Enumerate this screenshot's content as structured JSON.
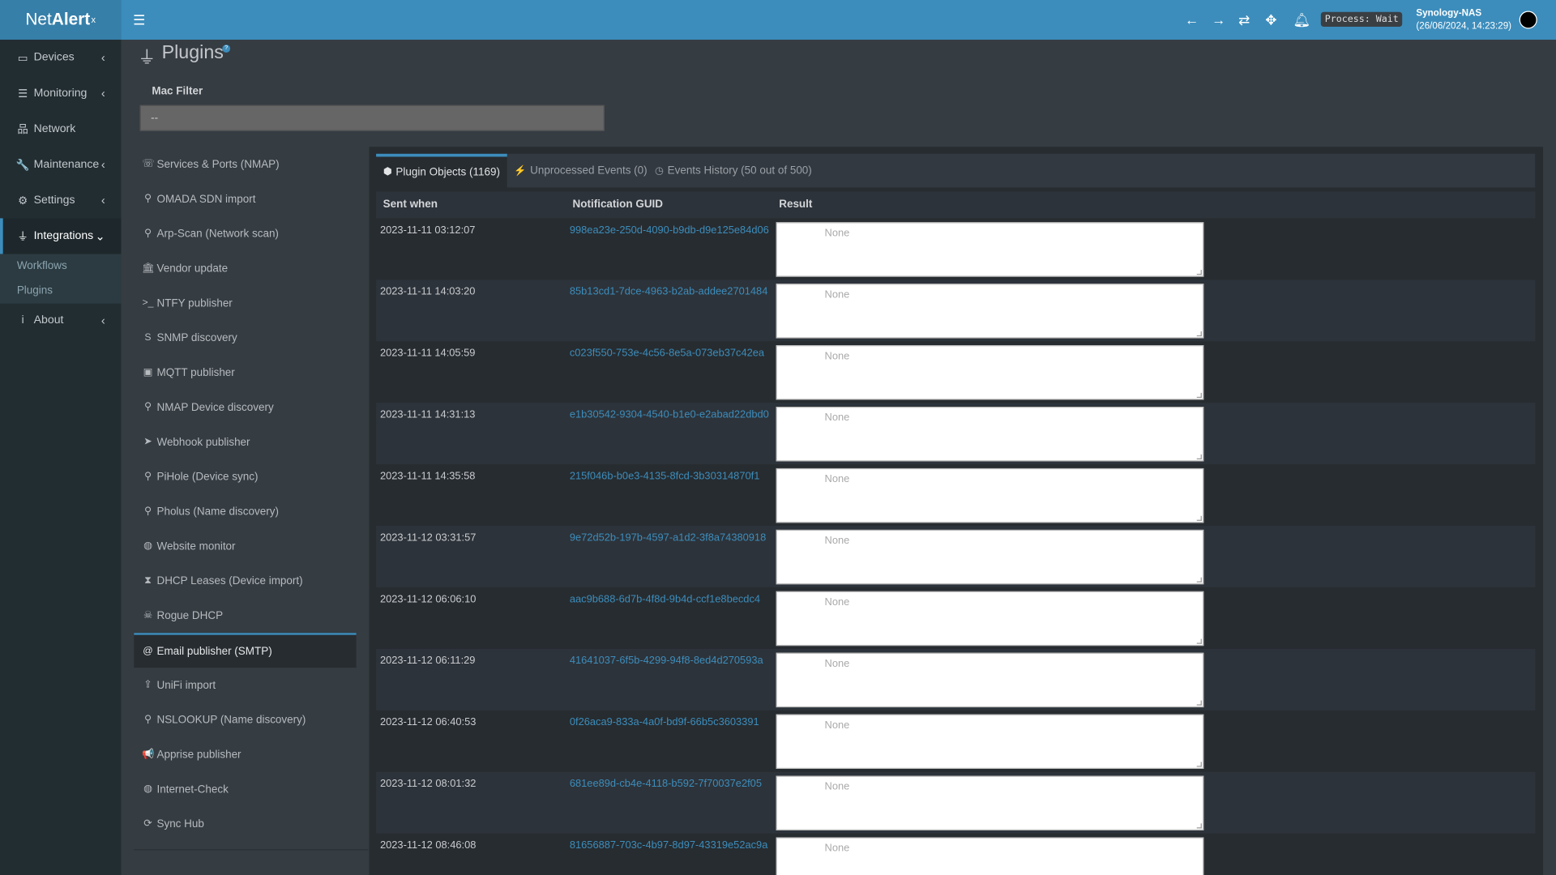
{
  "app": {
    "logo_main": "Net",
    "logo_bold": "Alert",
    "logo_sup": "x"
  },
  "header": {
    "process_status": "Process: Wait",
    "host_name": "Synology-NAS",
    "host_time": "(26/06/2024, 14:23:29)",
    "icons": [
      "menu-icon",
      "arrow-left-icon",
      "arrow-right-icon",
      "refresh-icon",
      "arrows-move-icon",
      "bell-icon",
      "avatar"
    ]
  },
  "sidebar": {
    "items": [
      {
        "label": "Devices",
        "icon": "laptop-icon",
        "glyph": "▭",
        "chevron": "‹"
      },
      {
        "label": "Monitoring",
        "icon": "chart-icon",
        "glyph": "☰",
        "chevron": "‹"
      },
      {
        "label": "Network",
        "icon": "sitemap-icon",
        "glyph": "品",
        "chevron": ""
      },
      {
        "label": "Maintenance",
        "icon": "wrench-icon",
        "glyph": "🔧",
        "chevron": "‹"
      },
      {
        "label": "Settings",
        "icon": "gear-icon",
        "glyph": "⚙",
        "chevron": "‹"
      },
      {
        "label": "Integrations",
        "icon": "plug-icon",
        "glyph": "⏚",
        "chevron": "⌄"
      },
      {
        "label": "About",
        "icon": "info-icon",
        "glyph": "i",
        "chevron": "‹"
      }
    ],
    "submenu": [
      "Workflows",
      "Plugins"
    ]
  },
  "page": {
    "title": "Plugins",
    "help": "?",
    "mac_filter_label": "Mac Filter",
    "mac_filter_value": "--"
  },
  "plugins": [
    {
      "label": "Services & Ports (NMAP)",
      "glyph": "☏",
      "icon": "satellite-dish-icon"
    },
    {
      "label": "OMADA SDN import",
      "glyph": "⚲",
      "icon": "search-icon"
    },
    {
      "label": "Arp-Scan (Network scan)",
      "glyph": "⚲",
      "icon": "search-icon"
    },
    {
      "label": "Vendor update",
      "glyph": "🏛",
      "icon": "bank-icon"
    },
    {
      "label": "NTFY publisher",
      "glyph": ">_",
      "icon": "terminal-icon"
    },
    {
      "label": "SNMP discovery",
      "glyph": "S",
      "icon": "s-icon"
    },
    {
      "label": "MQTT publisher",
      "glyph": "▣",
      "icon": "rss-square-icon"
    },
    {
      "label": "NMAP Device discovery",
      "glyph": "⚲",
      "icon": "search-icon"
    },
    {
      "label": "Webhook publisher",
      "glyph": "➤",
      "icon": "send-icon"
    },
    {
      "label": "PiHole (Device sync)",
      "glyph": "⚲",
      "icon": "search-icon"
    },
    {
      "label": "Pholus (Name discovery)",
      "glyph": "⚲",
      "icon": "search-icon"
    },
    {
      "label": "Website monitor",
      "glyph": "◍",
      "icon": "globe-icon"
    },
    {
      "label": "DHCP Leases (Device import)",
      "glyph": "⧗",
      "icon": "hourglass-icon"
    },
    {
      "label": "Rogue DHCP",
      "glyph": "☠",
      "icon": "skull-icon"
    },
    {
      "label": "Email publisher (SMTP)",
      "glyph": "@",
      "icon": "at-icon"
    },
    {
      "label": "UniFi import",
      "glyph": "⇪",
      "icon": "upload-icon"
    },
    {
      "label": "NSLOOKUP (Name discovery)",
      "glyph": "⚲",
      "icon": "search-icon"
    },
    {
      "label": "Apprise publisher",
      "glyph": "📢",
      "icon": "bullhorn-icon"
    },
    {
      "label": "Internet-Check",
      "glyph": "◍",
      "icon": "globe-icon"
    },
    {
      "label": "Sync Hub",
      "glyph": "⟳",
      "icon": "sync-icon"
    }
  ],
  "tabs": [
    {
      "label": "Plugin Objects (1169)",
      "glyph": "⬢",
      "icon": "cube-icon"
    },
    {
      "label": "Unprocessed Events (0)",
      "glyph": "⚡",
      "icon": "bolt-icon"
    },
    {
      "label": "Events History (50 out of 500)",
      "glyph": "◷",
      "icon": "clock-icon"
    }
  ],
  "table": {
    "columns": [
      "Sent when",
      "Notification GUID",
      "Result"
    ],
    "rows": [
      {
        "sent": "2023-11-11 03:12:07",
        "guid": "998ea23e-250d-4090-b9db-d9e125e84d06",
        "result": "None"
      },
      {
        "sent": "2023-11-11 14:03:20",
        "guid": "85b13cd1-7dce-4963-b2ab-addee2701484",
        "result": "None"
      },
      {
        "sent": "2023-11-11 14:05:59",
        "guid": "c023f550-753e-4c56-8e5a-073eb37c42ea",
        "result": "None"
      },
      {
        "sent": "2023-11-11 14:31:13",
        "guid": "e1b30542-9304-4540-b1e0-e2abad22dbd0",
        "result": "None"
      },
      {
        "sent": "2023-11-11 14:35:58",
        "guid": "215f046b-b0e3-4135-8fcd-3b30314870f1",
        "result": "None"
      },
      {
        "sent": "2023-11-12 03:31:57",
        "guid": "9e72d52b-197b-4597-a1d2-3f8a74380918",
        "result": "None"
      },
      {
        "sent": "2023-11-12 06:06:10",
        "guid": "aac9b688-6d7b-4f8d-9b4d-ccf1e8becdc4",
        "result": "None"
      },
      {
        "sent": "2023-11-12 06:11:29",
        "guid": "41641037-6f5b-4299-94f8-8ed4d270593a",
        "result": "None"
      },
      {
        "sent": "2023-11-12 06:40:53",
        "guid": "0f26aca9-833a-4a0f-bd9f-66b5c3603391",
        "result": "None"
      },
      {
        "sent": "2023-11-12 08:01:32",
        "guid": "681ee89d-cb4e-4118-b592-7f70037e2f05",
        "result": "None"
      },
      {
        "sent": "2023-11-12 08:46:08",
        "guid": "81656887-703c-4b97-8d97-43319e52ac9a",
        "result": "None"
      }
    ]
  },
  "colors": {
    "accent": "#3c8dbc",
    "sidebar": "#222d32",
    "content": "#353c42"
  }
}
